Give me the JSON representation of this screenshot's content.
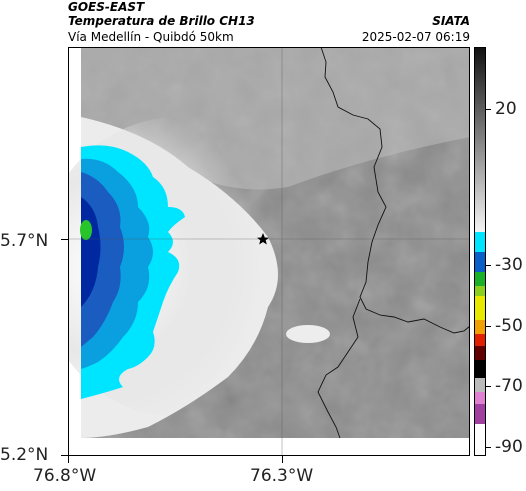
{
  "header": {
    "source": "GOES-EAST",
    "product": "Temperatura de Brillo CH13",
    "org": "SIATA",
    "region": "Vía Medellín - Quibdó 50km",
    "datetime": "2025-02-07 06:19"
  },
  "axes": {
    "lat_ticks": [
      "5.7°N",
      "5.2°N"
    ],
    "lon_ticks": [
      "76.8°W",
      "76.3°W"
    ]
  },
  "colorbar": {
    "ticks": [
      "20",
      "-30",
      "-50",
      "-70",
      "-90"
    ]
  },
  "colors": {
    "cloud_white": "#f2f2f2",
    "ground_gray": "#8a8a8a",
    "cold_cyan": "#00e5ff",
    "cold_blue": "#0030a0"
  }
}
